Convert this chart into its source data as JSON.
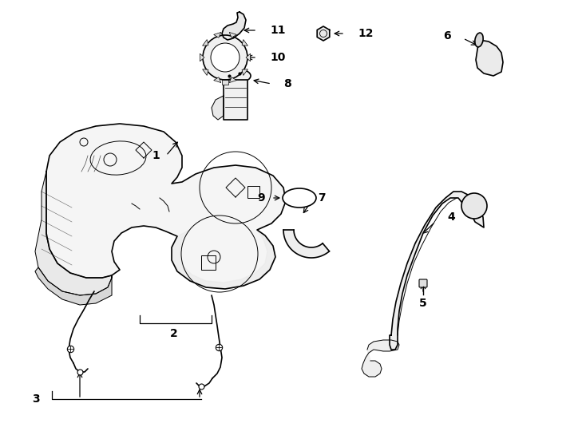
{
  "background_color": "#ffffff",
  "line_color": "#000000",
  "fig_width": 7.34,
  "fig_height": 5.4,
  "dpi": 100,
  "label_fontsize": 10,
  "label_fontweight": "bold"
}
